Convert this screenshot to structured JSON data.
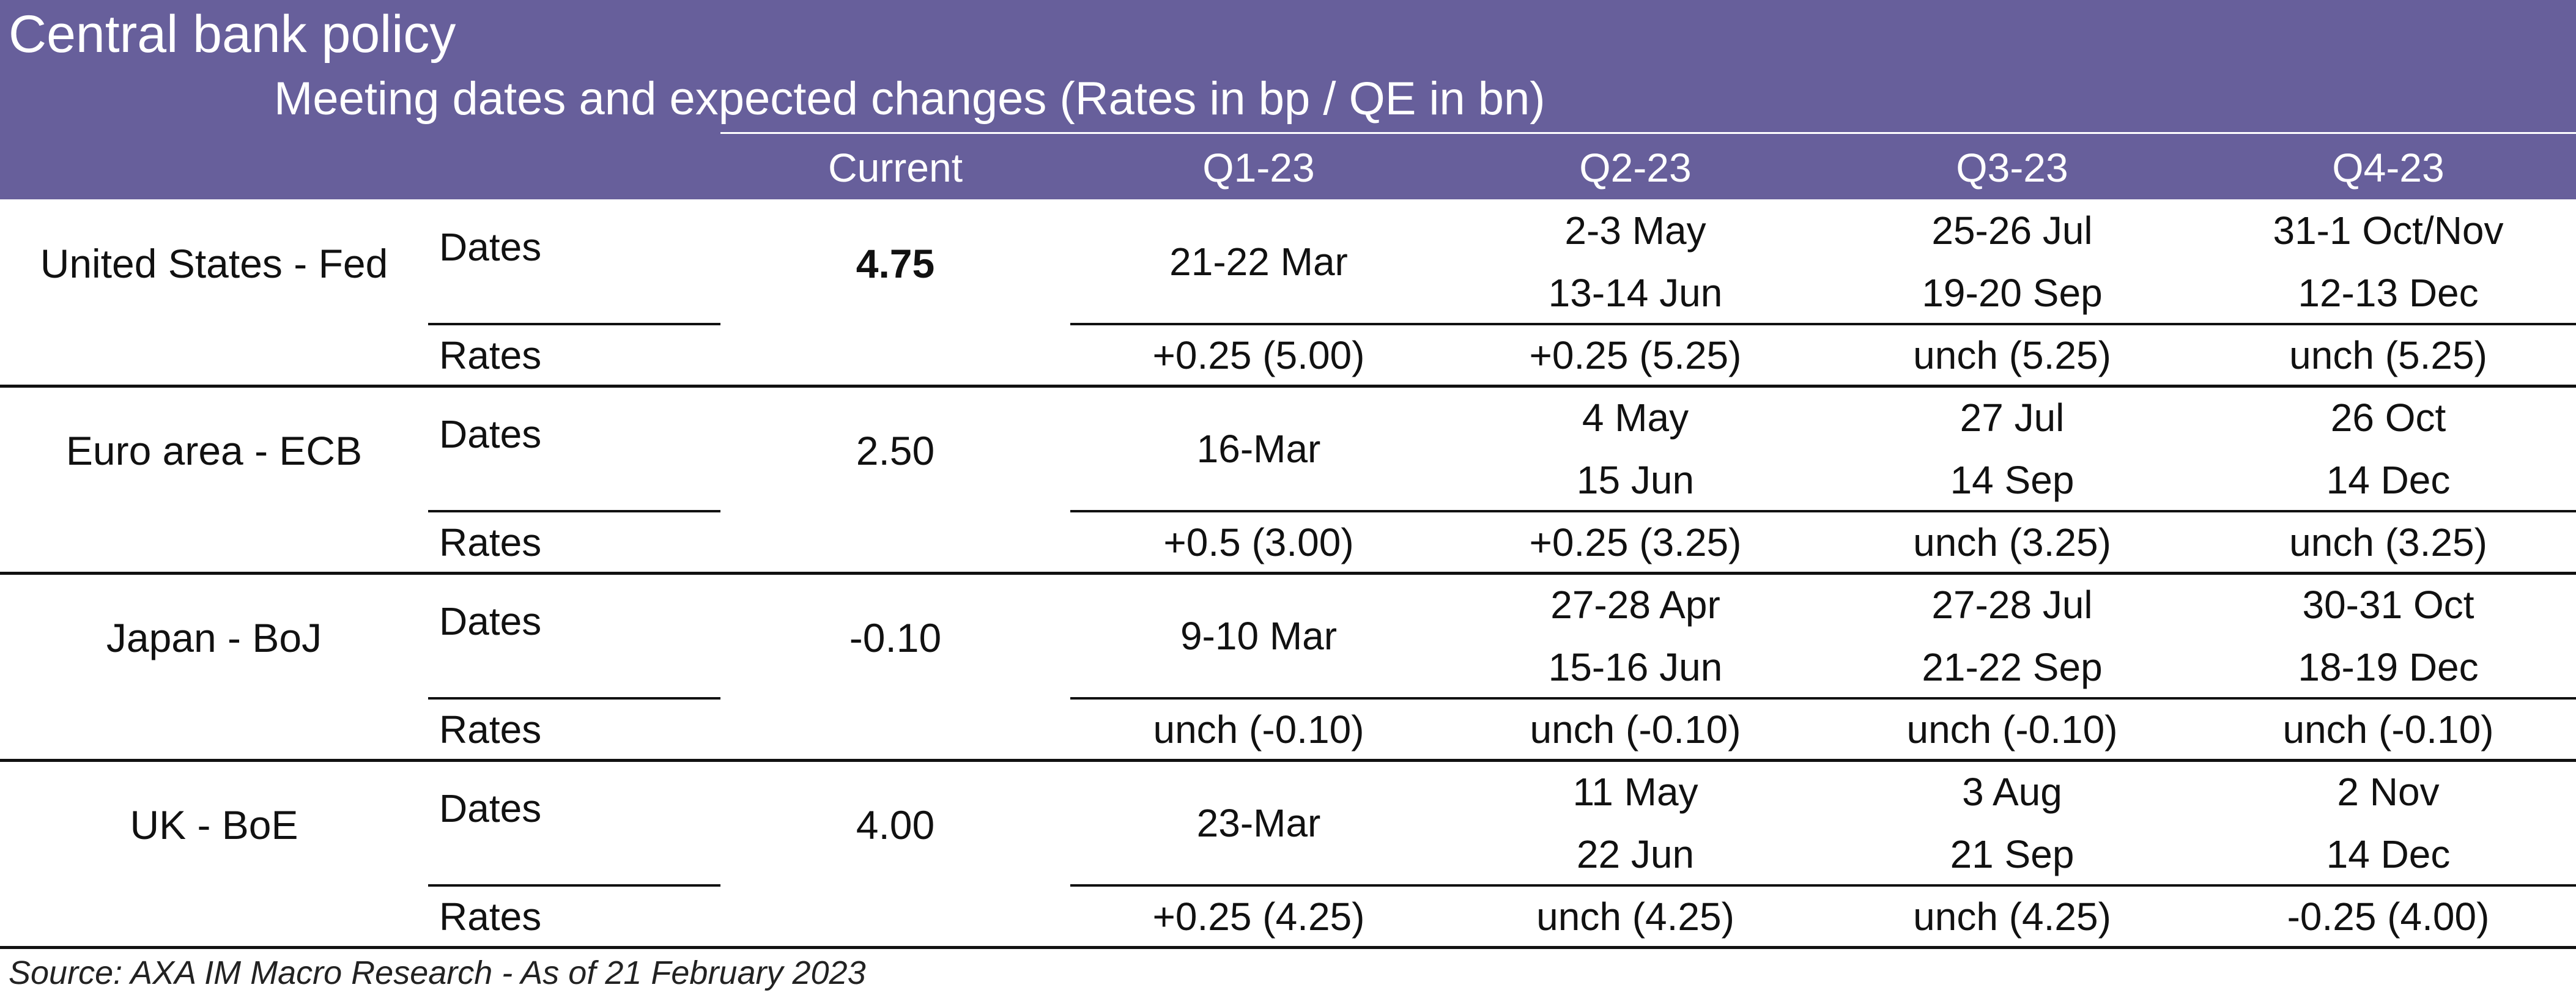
{
  "header": {
    "title": "Central bank policy",
    "subtitle": "Meeting dates and expected changes (Rates in bp / QE in bn)",
    "columns": [
      "Current",
      "Q1-23",
      "Q2-23",
      "Q3-23",
      "Q4-23"
    ],
    "background_color": "#675f9b"
  },
  "rows": [
    {
      "country": "United States - Fed",
      "current": "4.75",
      "dates_label": "Dates",
      "rates_label": "Rates",
      "dates": [
        {
          "l1": "21-22 Mar",
          "l2": ""
        },
        {
          "l1": "2-3 May",
          "l2": "13-14 Jun"
        },
        {
          "l1": "25-26 Jul",
          "l2": "19-20 Sep"
        },
        {
          "l1": "31-1 Oct/Nov",
          "l2": "12-13 Dec"
        }
      ],
      "rates": [
        "+0.25 (5.00)",
        "+0.25 (5.25)",
        "unch (5.25)",
        "unch (5.25)"
      ]
    },
    {
      "country": "Euro area - ECB",
      "current": "2.50",
      "dates_label": "Dates",
      "rates_label": "Rates",
      "dates": [
        {
          "l1": "16-Mar",
          "l2": ""
        },
        {
          "l1": "4 May",
          "l2": "15 Jun"
        },
        {
          "l1": "27 Jul",
          "l2": "14 Sep"
        },
        {
          "l1": "26 Oct",
          "l2": "14 Dec"
        }
      ],
      "rates": [
        "+0.5 (3.00)",
        "+0.25 (3.25)",
        "unch (3.25)",
        "unch (3.25)"
      ]
    },
    {
      "country": "Japan - BoJ",
      "current": "-0.10",
      "dates_label": "Dates",
      "rates_label": "Rates",
      "dates": [
        {
          "l1": "9-10 Mar",
          "l2": ""
        },
        {
          "l1": "27-28 Apr",
          "l2": "15-16 Jun"
        },
        {
          "l1": "27-28 Jul",
          "l2": "21-22 Sep"
        },
        {
          "l1": "30-31 Oct",
          "l2": "18-19 Dec"
        }
      ],
      "rates": [
        "unch (-0.10)",
        "unch (-0.10)",
        "unch (-0.10)",
        "unch (-0.10)"
      ]
    },
    {
      "country": "UK - BoE",
      "current": "4.00",
      "dates_label": "Dates",
      "rates_label": "Rates",
      "dates": [
        {
          "l1": "23-Mar",
          "l2": ""
        },
        {
          "l1": "11 May",
          "l2": "22 Jun"
        },
        {
          "l1": "3 Aug",
          "l2": "21 Sep"
        },
        {
          "l1": "2 Nov",
          "l2": "14 Dec"
        }
      ],
      "rates": [
        "+0.25 (4.25)",
        "unch (4.25)",
        "unch (4.25)",
        "-0.25 (4.00)"
      ]
    }
  ],
  "source": "Source: AXA IM Macro Research - As of 21 February 2023"
}
